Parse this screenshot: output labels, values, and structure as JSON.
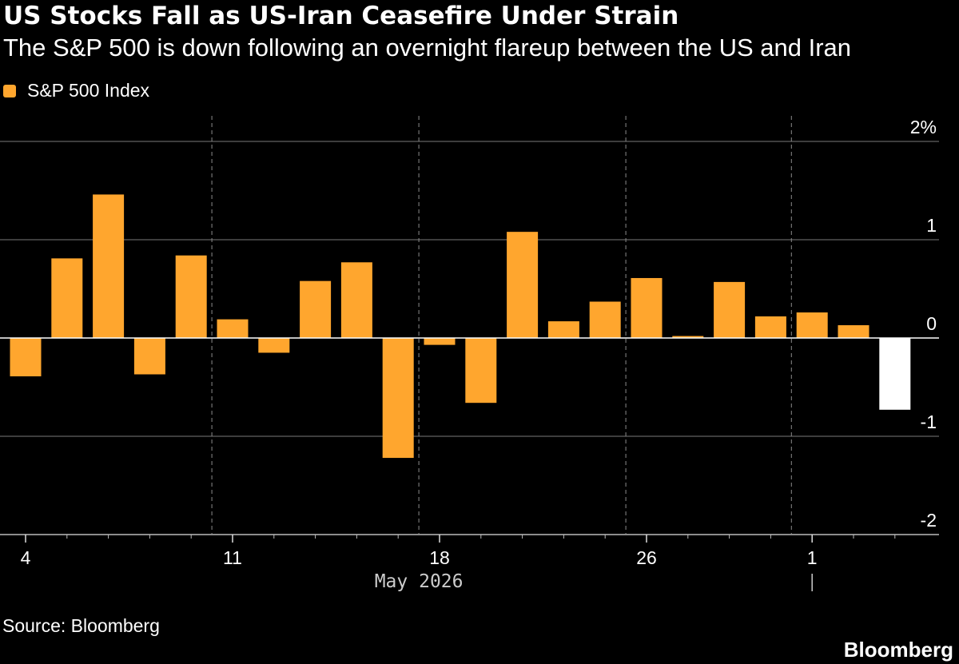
{
  "title": "US Stocks Fall as US-Iran Ceasefire Under Strain",
  "subtitle": "The S&P 500 is down following an overnight flareup between the US and Iran",
  "legend": {
    "label": "S&P 500 Index",
    "color": "#FFA62E"
  },
  "source": "Source: Bloomberg",
  "brand": "Bloomberg",
  "colors": {
    "positive": "#FFA62E",
    "highlight": "#FFFFFF",
    "grid": "#7a7a7a",
    "background": "#000000"
  },
  "chart_data": {
    "type": "bar",
    "title": "US Stocks Fall as US-Iran Ceasefire Under Strain",
    "subtitle": "The S&P 500 is down following an overnight flareup between the US and Iran",
    "xlabel": "",
    "ylabel": "",
    "ylim": [
      -2,
      2
    ],
    "yticks": [
      {
        "value": 2,
        "label": "2%"
      },
      {
        "value": 1,
        "label": "1"
      },
      {
        "value": 0,
        "label": "0"
      },
      {
        "value": -1,
        "label": "-1"
      },
      {
        "value": -2,
        "label": "-2"
      }
    ],
    "x_tick_labels": [
      {
        "date": "2026-05-04",
        "label": "4"
      },
      {
        "date": "2026-05-11",
        "label": "11"
      },
      {
        "date": "2026-05-18",
        "label": "18"
      },
      {
        "date": "2026-05-26",
        "label": "26"
      },
      {
        "date": "2026-06-01",
        "label": "1"
      }
    ],
    "month_label": "May 2026",
    "grid": true,
    "legend_position": "top-left",
    "series": [
      {
        "name": "S&P 500 Index",
        "points": [
          {
            "date": "2026-05-04",
            "value": -0.39
          },
          {
            "date": "2026-05-05",
            "value": 0.81
          },
          {
            "date": "2026-05-06",
            "value": 1.46
          },
          {
            "date": "2026-05-07",
            "value": -0.37
          },
          {
            "date": "2026-05-08",
            "value": 0.84
          },
          {
            "date": "2026-05-11",
            "value": 0.19
          },
          {
            "date": "2026-05-12",
            "value": -0.15
          },
          {
            "date": "2026-05-13",
            "value": 0.58
          },
          {
            "date": "2026-05-14",
            "value": 0.77
          },
          {
            "date": "2026-05-15",
            "value": -1.22
          },
          {
            "date": "2026-05-18",
            "value": -0.07
          },
          {
            "date": "2026-05-19",
            "value": -0.66
          },
          {
            "date": "2026-05-20",
            "value": 1.08
          },
          {
            "date": "2026-05-21",
            "value": 0.17
          },
          {
            "date": "2026-05-22",
            "value": 0.37
          },
          {
            "date": "2026-05-26",
            "value": 0.61
          },
          {
            "date": "2026-05-27",
            "value": 0.02
          },
          {
            "date": "2026-05-28",
            "value": 0.57
          },
          {
            "date": "2026-05-29",
            "value": 0.22
          },
          {
            "date": "2026-06-01",
            "value": 0.26
          },
          {
            "date": "2026-06-02",
            "value": 0.13
          },
          {
            "date": "2026-06-03",
            "value": -0.73,
            "highlight": true
          }
        ]
      }
    ]
  }
}
